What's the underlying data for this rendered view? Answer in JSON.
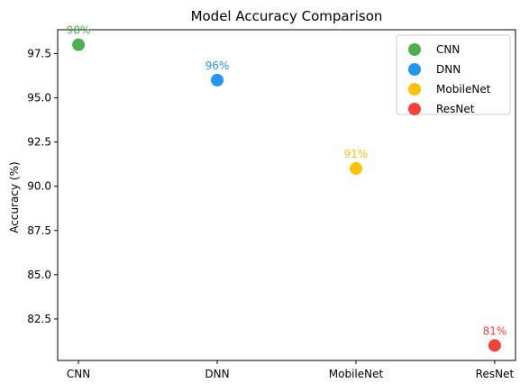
{
  "chart_data": {
    "type": "scatter",
    "title": "Model Accuracy Comparison",
    "xlabel": "",
    "ylabel": "Accuracy (%)",
    "categories": [
      "CNN",
      "DNN",
      "MobileNet",
      "ResNet"
    ],
    "ylim": [
      80.15,
      98.85
    ],
    "yticks": [
      "82.5",
      "85.0",
      "87.5",
      "90.0",
      "92.5",
      "95.0",
      "97.5"
    ],
    "grid": false,
    "legend_position": "top-right",
    "series": [
      {
        "name": "CNN",
        "category": "CNN",
        "value": 98,
        "label": "98%",
        "color": "#4caf50"
      },
      {
        "name": "DNN",
        "category": "DNN",
        "value": 96,
        "label": "96%",
        "color": "#2196f3"
      },
      {
        "name": "MobileNet",
        "category": "MobileNet",
        "value": 91,
        "label": "91%",
        "color": "#ffc107"
      },
      {
        "name": "ResNet",
        "category": "ResNet",
        "value": 81,
        "label": "81%",
        "color": "#f44336"
      }
    ]
  }
}
